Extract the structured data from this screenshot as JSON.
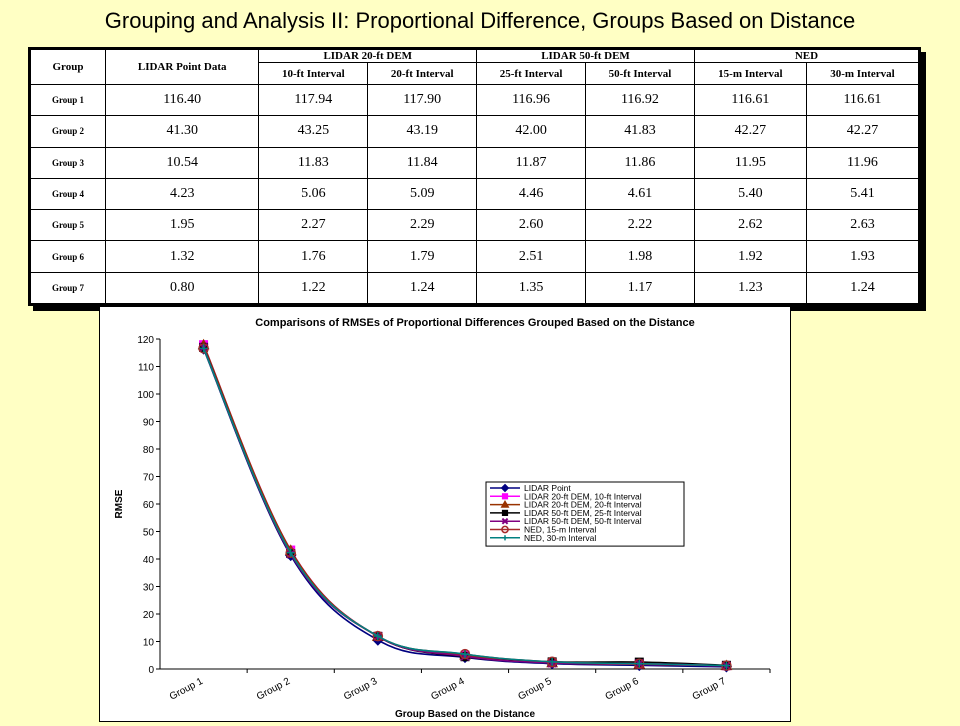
{
  "slide": {
    "title": "Grouping and Analysis II: Proportional Difference, Groups Based on Distance"
  },
  "table": {
    "header_group": "Group",
    "header_lidar_point": "LIDAR Point Data",
    "header_top": [
      "LIDAR 20-ft DEM",
      "LIDAR 50-ft DEM",
      "NED"
    ],
    "header_sub": [
      "10-ft Interval",
      "20-ft Interval",
      "25-ft Interval",
      "50-ft Interval",
      "15-m Interval",
      "30-m Interval"
    ],
    "rows": [
      {
        "label": "Group 1",
        "values": [
          "116.40",
          "117.94",
          "117.90",
          "116.96",
          "116.92",
          "116.61",
          "116.61"
        ]
      },
      {
        "label": "Group 2",
        "values": [
          "41.30",
          "43.25",
          "43.19",
          "42.00",
          "41.83",
          "42.27",
          "42.27"
        ]
      },
      {
        "label": "Group 3",
        "values": [
          "10.54",
          "11.83",
          "11.84",
          "11.87",
          "11.86",
          "11.95",
          "11.96"
        ]
      },
      {
        "label": "Group 4",
        "values": [
          "4.23",
          "5.06",
          "5.09",
          "4.46",
          "4.61",
          "5.40",
          "5.41"
        ]
      },
      {
        "label": "Group 5",
        "values": [
          "1.95",
          "2.27",
          "2.29",
          "2.60",
          "2.22",
          "2.62",
          "2.63"
        ]
      },
      {
        "label": "Group 6",
        "values": [
          "1.32",
          "1.76",
          "1.79",
          "2.51",
          "1.98",
          "1.92",
          "1.93"
        ]
      },
      {
        "label": "Group 7",
        "values": [
          "0.80",
          "1.22",
          "1.24",
          "1.35",
          "1.17",
          "1.23",
          "1.24"
        ]
      }
    ]
  },
  "chart_data": {
    "type": "line",
    "title": "Comparisons of RMSEs of Proportional Differences Grouped Based on the Distance",
    "xlabel": "Group Based on the Distance",
    "ylabel": "RMSE",
    "ylim": [
      0,
      120
    ],
    "yticks": [
      0,
      10,
      20,
      30,
      40,
      50,
      60,
      70,
      80,
      90,
      100,
      110,
      120
    ],
    "grid": false,
    "legend_placement": "right",
    "categories": [
      "Group 1",
      "Group 2",
      "Group 3",
      "Group 4",
      "Group 5",
      "Group 6",
      "Group 7"
    ],
    "series": [
      {
        "name": "LIDAR Point",
        "color": "#000080",
        "marker": "diamond",
        "values": [
          116.4,
          41.3,
          10.54,
          4.23,
          1.95,
          1.32,
          0.8
        ]
      },
      {
        "name": "LIDAR 20-ft DEM, 10-ft Interval",
        "color": "#ff00ff",
        "marker": "square",
        "values": [
          117.94,
          43.25,
          11.83,
          5.06,
          2.27,
          1.76,
          1.22
        ]
      },
      {
        "name": "LIDAR 20-ft DEM, 20-ft Interval",
        "color": "#993300",
        "marker": "triangle",
        "values": [
          117.9,
          43.19,
          11.84,
          5.09,
          2.29,
          1.79,
          1.24
        ]
      },
      {
        "name": "LIDAR 50-ft DEM, 25-ft Interval",
        "color": "#000000",
        "marker": "square",
        "values": [
          116.96,
          42.0,
          11.87,
          4.46,
          2.6,
          2.51,
          1.35
        ]
      },
      {
        "name": "LIDAR 50-ft DEM, 50-ft Interval",
        "color": "#800080",
        "marker": "x",
        "values": [
          116.92,
          41.83,
          11.86,
          4.61,
          2.22,
          1.98,
          1.17
        ]
      },
      {
        "name": "NED, 15-m Interval",
        "color": "#a52a2a",
        "marker": "circle",
        "values": [
          116.61,
          42.27,
          11.95,
          5.4,
          2.62,
          1.92,
          1.23
        ]
      },
      {
        "name": "NED, 30-m Interval",
        "color": "#008080",
        "marker": "plus",
        "values": [
          116.61,
          42.27,
          11.96,
          5.41,
          2.63,
          1.93,
          1.24
        ]
      }
    ]
  }
}
